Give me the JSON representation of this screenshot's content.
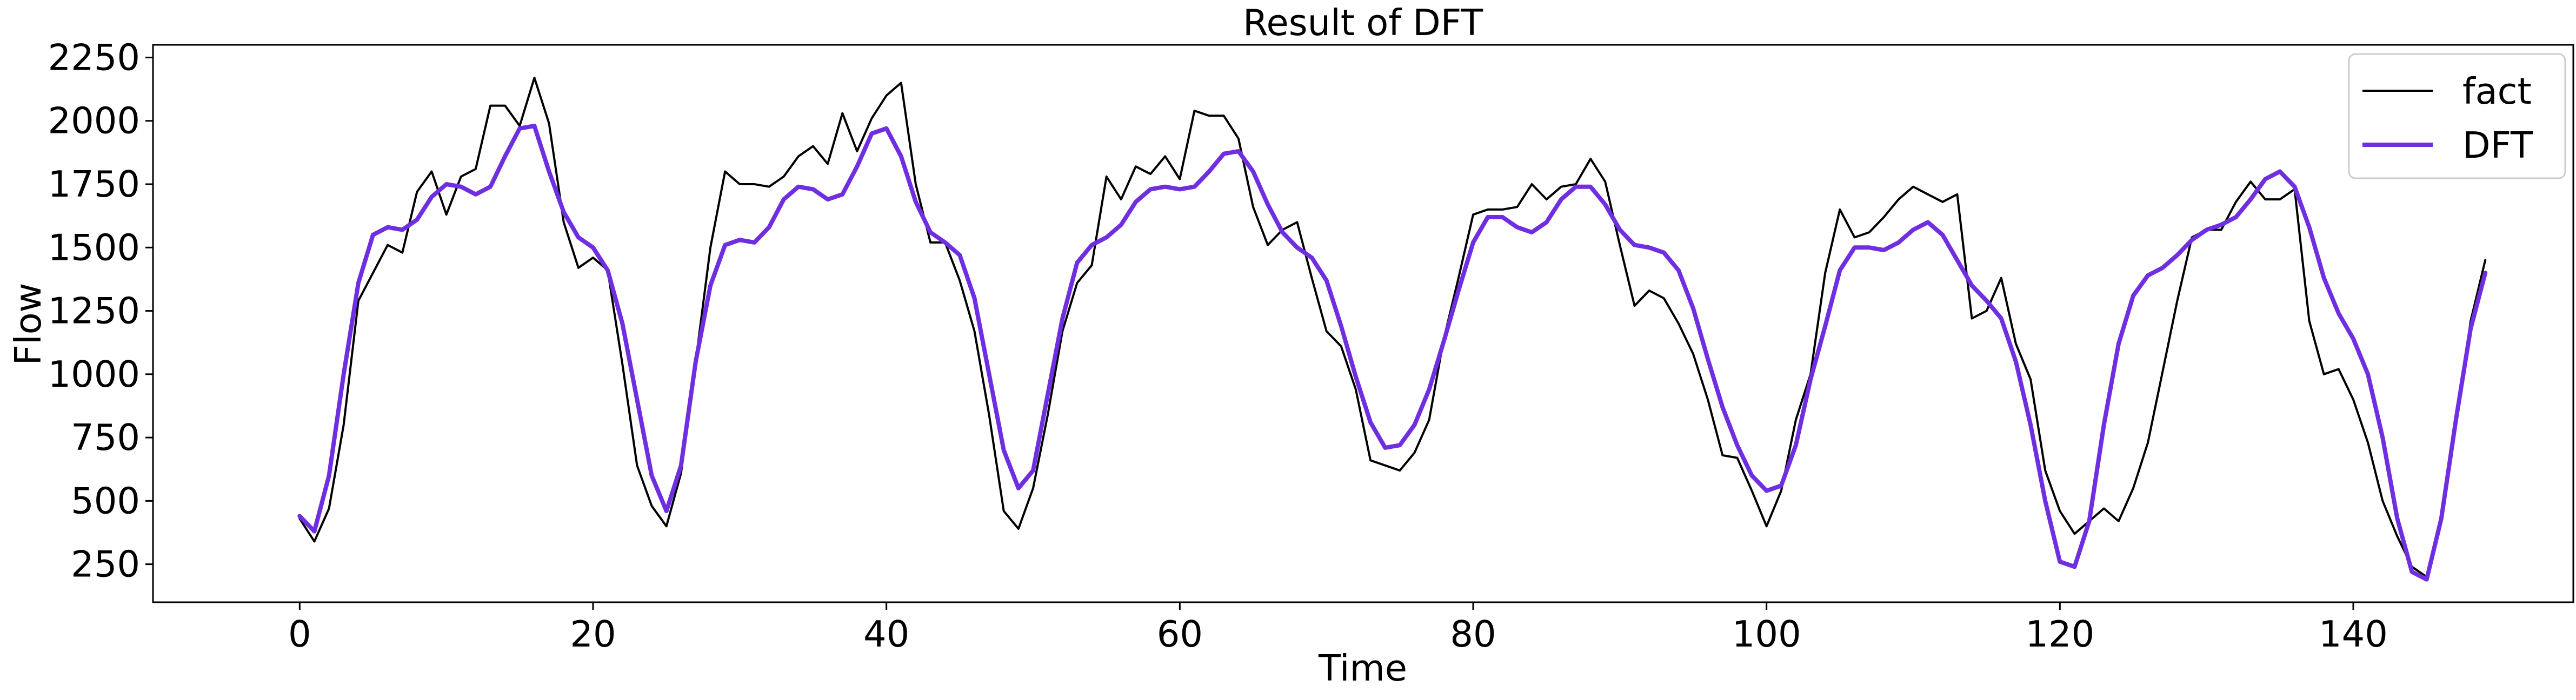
{
  "chart_data": {
    "type": "line",
    "title": "Result of DFT",
    "xlabel": "Time",
    "ylabel": "Flow",
    "xlim": [
      -10,
      155
    ],
    "ylim": [
      100,
      2300
    ],
    "xticks": [
      0,
      20,
      40,
      60,
      80,
      100,
      120,
      140
    ],
    "yticks": [
      250,
      500,
      750,
      1000,
      1250,
      1500,
      1750,
      2000,
      2250
    ],
    "legend_position": "top-right",
    "grid": false,
    "series": [
      {
        "name": "fact",
        "color": "#000000",
        "values": [
          430,
          340,
          470,
          800,
          1290,
          1400,
          1510,
          1480,
          1720,
          1800,
          1630,
          1780,
          1810,
          2060,
          2060,
          1980,
          2170,
          1990,
          1600,
          1420,
          1460,
          1410,
          1040,
          640,
          480,
          400,
          610,
          1050,
          1500,
          1800,
          1750,
          1750,
          1740,
          1780,
          1860,
          1900,
          1830,
          2030,
          1880,
          2010,
          2100,
          2150,
          1750,
          1520,
          1520,
          1370,
          1170,
          840,
          460,
          390,
          550,
          840,
          1170,
          1360,
          1430,
          1780,
          1690,
          1820,
          1790,
          1860,
          1770,
          2040,
          2020,
          2020,
          1930,
          1660,
          1510,
          1570,
          1600,
          1380,
          1170,
          1110,
          940,
          660,
          640,
          620,
          690,
          820,
          1140,
          1380,
          1630,
          1650,
          1650,
          1660,
          1750,
          1690,
          1740,
          1750,
          1850,
          1760,
          1510,
          1270,
          1330,
          1300,
          1200,
          1080,
          900,
          680,
          670,
          540,
          400,
          540,
          820,
          1000,
          1400,
          1650,
          1540,
          1560,
          1620,
          1690,
          1740,
          1710,
          1680,
          1710,
          1220,
          1250,
          1380,
          1120,
          980,
          620,
          460,
          370,
          420,
          470,
          420,
          550,
          730,
          1010,
          1290,
          1540,
          1570,
          1570,
          1680,
          1760,
          1690,
          1690,
          1730,
          1210,
          1000,
          1020,
          900,
          730,
          500,
          360,
          240,
          200,
          420,
          800,
          1210,
          1450
        ]
      },
      {
        "name": "DFT",
        "color": "#6f2fe0",
        "values": [
          440,
          380,
          600,
          1000,
          1360,
          1550,
          1580,
          1570,
          1610,
          1700,
          1750,
          1740,
          1710,
          1740,
          1860,
          1970,
          1980,
          1800,
          1640,
          1540,
          1500,
          1410,
          1200,
          900,
          600,
          460,
          640,
          1050,
          1350,
          1510,
          1530,
          1520,
          1580,
          1690,
          1740,
          1730,
          1690,
          1710,
          1820,
          1950,
          1970,
          1860,
          1680,
          1560,
          1520,
          1470,
          1300,
          1000,
          700,
          550,
          620,
          920,
          1220,
          1440,
          1510,
          1540,
          1590,
          1680,
          1730,
          1740,
          1730,
          1740,
          1800,
          1870,
          1880,
          1800,
          1670,
          1560,
          1500,
          1460,
          1370,
          1190,
          990,
          810,
          710,
          720,
          800,
          940,
          1130,
          1330,
          1520,
          1620,
          1620,
          1580,
          1560,
          1600,
          1690,
          1740,
          1740,
          1670,
          1570,
          1510,
          1500,
          1480,
          1410,
          1260,
          1060,
          870,
          720,
          600,
          540,
          560,
          720,
          980,
          1190,
          1410,
          1500,
          1500,
          1490,
          1520,
          1570,
          1600,
          1550,
          1450,
          1350,
          1290,
          1220,
          1050,
          800,
          500,
          260,
          240,
          420,
          800,
          1120,
          1310,
          1390,
          1420,
          1470,
          1530,
          1570,
          1590,
          1620,
          1690,
          1770,
          1800,
          1740,
          1580,
          1380,
          1240,
          1140,
          1000,
          750,
          430,
          220,
          190,
          430,
          820,
          1180,
          1400
        ]
      }
    ]
  }
}
